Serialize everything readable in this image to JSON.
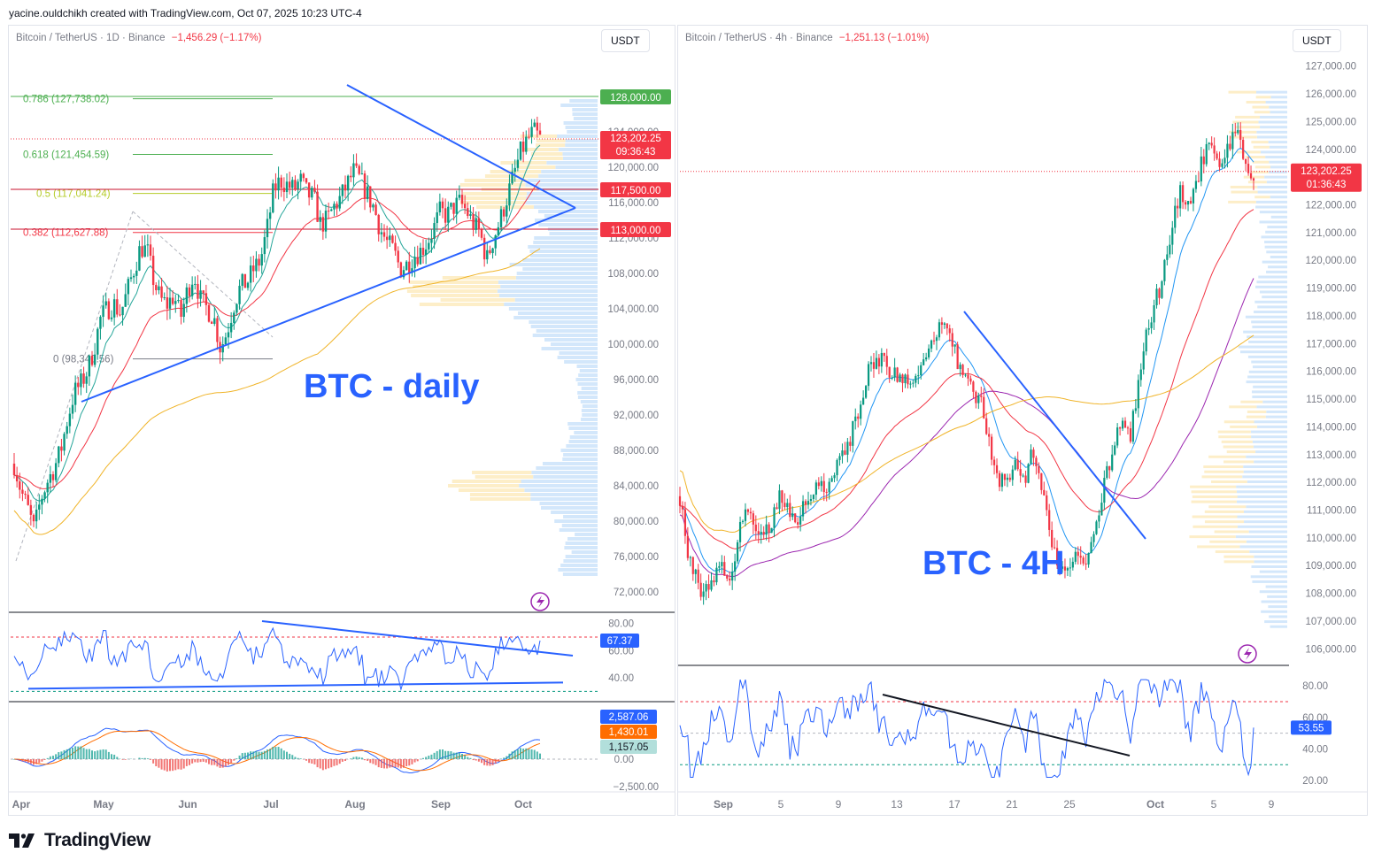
{
  "header": {
    "credit": "yacine.ouldchikh created with TradingView.com, Oct 07, 2025 10:23 UTC-4"
  },
  "footer": {
    "logo_text": "TradingView"
  },
  "colors": {
    "up": "#089981",
    "down": "#f23645",
    "accent": "#2962ff",
    "fib": "#4caf50",
    "ma_orange": "#f0b429",
    "ma_red": "#f23645",
    "ma_teal": "#26a69a",
    "ma_purple": "#9c27b0"
  },
  "left": {
    "title": "Bitcoin / TetherUS · 1D · Binance",
    "change": "−1,456.29 (−1.17%)",
    "currency_button": "USDT",
    "annotation": "BTC - daily",
    "fib_labels": [
      "0.786 (127,738.02)",
      "0.618 (121,454.59)",
      "0.5 (117,041.24)",
      "0.382 (112,627.88)",
      "0 (98,340.56)"
    ],
    "price_tags": {
      "level_128k": "128,000.00",
      "last_price": "123,202.25",
      "countdown": "09:36:43",
      "level_117k": "117,500.00",
      "level_113k": "113,000.00"
    },
    "rsi_value": "67.37",
    "macd_values": [
      "2,587.06",
      "1,430.01",
      "1,157.05"
    ]
  },
  "right": {
    "title": "Bitcoin / TetherUS · 4h · Binance",
    "change": "−1,251.13 (−1.01%)",
    "currency_button": "USDT",
    "annotation": "BTC - 4H",
    "price_tags": {
      "last_price": "123,202.25",
      "countdown": "01:36:43"
    },
    "rsi_value": "53.55"
  },
  "chart_data": [
    {
      "type": "candlestick",
      "title": "Bitcoin / TetherUS · 1D · Binance",
      "timeframe": "1D",
      "x_ticks": [
        "Apr",
        "May",
        "Jun",
        "Jul",
        "Aug",
        "Sep",
        "Oct"
      ],
      "y_ticks": [
        "124,000.00",
        "120,000.00",
        "116,000.00",
        "112,000.00",
        "108,000.00",
        "104,000.00",
        "100,000.00",
        "96,000.00",
        "92,000.00",
        "88,000.00",
        "84,000.00",
        "80,000.00",
        "76,000.00",
        "72,000.00"
      ],
      "ylim": [
        71000,
        130000
      ],
      "close_path": [
        [
          0,
          86500
        ],
        [
          4,
          83500
        ],
        [
          8,
          81500
        ],
        [
          12,
          79000
        ],
        [
          16,
          82500
        ],
        [
          20,
          84500
        ],
        [
          24,
          86000
        ],
        [
          28,
          88000
        ],
        [
          32,
          91500
        ],
        [
          36,
          94500
        ],
        [
          40,
          95500
        ],
        [
          44,
          97000
        ],
        [
          48,
          99500
        ],
        [
          52,
          103000
        ],
        [
          56,
          104000
        ],
        [
          60,
          104500
        ],
        [
          64,
          103500
        ],
        [
          68,
          106000
        ],
        [
          72,
          108500
        ],
        [
          76,
          111000
        ],
        [
          80,
          110500
        ],
        [
          84,
          107000
        ],
        [
          88,
          105000
        ],
        [
          92,
          104500
        ],
        [
          96,
          105500
        ],
        [
          100,
          103000
        ],
        [
          104,
          106000
        ],
        [
          108,
          108000
        ],
        [
          112,
          105000
        ],
        [
          116,
          104000
        ],
        [
          120,
          103000
        ],
        [
          124,
          99500
        ],
        [
          128,
          101500
        ],
        [
          132,
          104500
        ],
        [
          136,
          106500
        ],
        [
          140,
          107000
        ],
        [
          144,
          108500
        ],
        [
          148,
          109500
        ],
        [
          152,
          113000
        ],
        [
          156,
          117500
        ],
        [
          160,
          118500
        ],
        [
          164,
          118000
        ],
        [
          168,
          117500
        ],
        [
          172,
          118500
        ],
        [
          176,
          117000
        ],
        [
          180,
          116500
        ],
        [
          184,
          113500
        ],
        [
          188,
          114000
        ],
        [
          192,
          115500
        ],
        [
          196,
          116500
        ],
        [
          200,
          118000
        ],
        [
          204,
          119500
        ],
        [
          208,
          118500
        ],
        [
          212,
          117000
        ],
        [
          216,
          115500
        ],
        [
          220,
          113000
        ],
        [
          224,
          111500
        ],
        [
          228,
          110500
        ],
        [
          232,
          108500
        ],
        [
          236,
          109000
        ],
        [
          240,
          110000
        ],
        [
          244,
          110500
        ],
        [
          248,
          111500
        ],
        [
          252,
          113000
        ],
        [
          256,
          115000
        ],
        [
          260,
          114500
        ],
        [
          264,
          115500
        ],
        [
          268,
          116000
        ],
        [
          272,
          115000
        ],
        [
          276,
          113500
        ],
        [
          280,
          112500
        ],
        [
          284,
          109500
        ],
        [
          288,
          112000
        ],
        [
          292,
          114000
        ],
        [
          296,
          116500
        ],
        [
          300,
          119000
        ],
        [
          304,
          121500
        ],
        [
          308,
          123000
        ],
        [
          312,
          124000
        ],
        [
          316,
          123200
        ]
      ],
      "overlays": [
        "fib retracement 0 → 0.786",
        "trendlines (symmetrical triangle)",
        "moving averages",
        "volume profile"
      ],
      "rsi": {
        "y_ticks": [
          "80.00",
          "60.00",
          "40.00"
        ],
        "last": 67.37,
        "overbought": 70,
        "oversold": 30
      },
      "macd": {
        "y_ticks": [
          "0.00",
          "−2,500.00"
        ],
        "macd": 2587.06,
        "signal": 1430.01,
        "histogram": 1157.05
      }
    },
    {
      "type": "candlestick",
      "title": "Bitcoin / TetherUS · 4h · Binance",
      "timeframe": "4h",
      "x_ticks": [
        "Sep",
        "5",
        "9",
        "13",
        "17",
        "21",
        "25",
        "Oct",
        "5",
        "9"
      ],
      "y_ticks": [
        "127,000.00",
        "126,000.00",
        "125,000.00",
        "124,000.00",
        "123,000.00",
        "122,000.00",
        "121,000.00",
        "120,000.00",
        "119,000.00",
        "118,000.00",
        "117,000.00",
        "116,000.00",
        "115,000.00",
        "114,000.00",
        "113,000.00",
        "112,000.00",
        "111,000.00",
        "110,000.00",
        "109,000.00",
        "108,000.00",
        "107,000.00",
        "106,000.00"
      ],
      "ylim": [
        105500,
        127500
      ],
      "close_path": [
        [
          0,
          111500
        ],
        [
          4,
          109500
        ],
        [
          8,
          108500
        ],
        [
          12,
          108000
        ],
        [
          16,
          108500
        ],
        [
          20,
          109000
        ],
        [
          24,
          108200
        ],
        [
          28,
          110000
        ],
        [
          32,
          111200
        ],
        [
          36,
          110800
        ],
        [
          40,
          110000
        ],
        [
          44,
          110500
        ],
        [
          48,
          111500
        ],
        [
          52,
          111200
        ],
        [
          56,
          110400
        ],
        [
          60,
          111000
        ],
        [
          64,
          111600
        ],
        [
          68,
          112200
        ],
        [
          72,
          111800
        ],
        [
          76,
          112500
        ],
        [
          80,
          113000
        ],
        [
          84,
          113800
        ],
        [
          88,
          114500
        ],
        [
          92,
          116000
        ],
        [
          96,
          116500
        ],
        [
          100,
          116200
        ],
        [
          104,
          115800
        ],
        [
          108,
          116000
        ],
        [
          112,
          115500
        ],
        [
          116,
          115800
        ],
        [
          120,
          116500
        ],
        [
          124,
          117200
        ],
        [
          128,
          117800
        ],
        [
          132,
          117200
        ],
        [
          136,
          116200
        ],
        [
          140,
          115800
        ],
        [
          144,
          115200
        ],
        [
          148,
          114600
        ],
        [
          152,
          113000
        ],
        [
          156,
          112000
        ],
        [
          160,
          112300
        ],
        [
          164,
          112800
        ],
        [
          168,
          112100
        ],
        [
          172,
          113000
        ],
        [
          176,
          112200
        ],
        [
          180,
          110500
        ],
        [
          184,
          109200
        ],
        [
          188,
          109000
        ],
        [
          192,
          109300
        ],
        [
          196,
          109200
        ],
        [
          200,
          109400
        ],
        [
          204,
          110800
        ],
        [
          208,
          112100
        ],
        [
          212,
          113500
        ],
        [
          216,
          114200
        ],
        [
          220,
          113800
        ],
        [
          224,
          115500
        ],
        [
          228,
          117500
        ],
        [
          232,
          118500
        ],
        [
          236,
          119500
        ],
        [
          240,
          121000
        ],
        [
          244,
          122500
        ],
        [
          248,
          122000
        ],
        [
          252,
          122800
        ],
        [
          256,
          123800
        ],
        [
          260,
          124500
        ],
        [
          264,
          123000
        ],
        [
          268,
          124200
        ],
        [
          272,
          124800
        ],
        [
          276,
          123500
        ],
        [
          280,
          123200
        ]
      ],
      "overlays": [
        "descending trendline",
        "moving averages",
        "volume profile"
      ],
      "rsi": {
        "y_ticks": [
          "80.00",
          "60.00",
          "40.00",
          "20.00"
        ],
        "last": 53.55
      }
    }
  ]
}
